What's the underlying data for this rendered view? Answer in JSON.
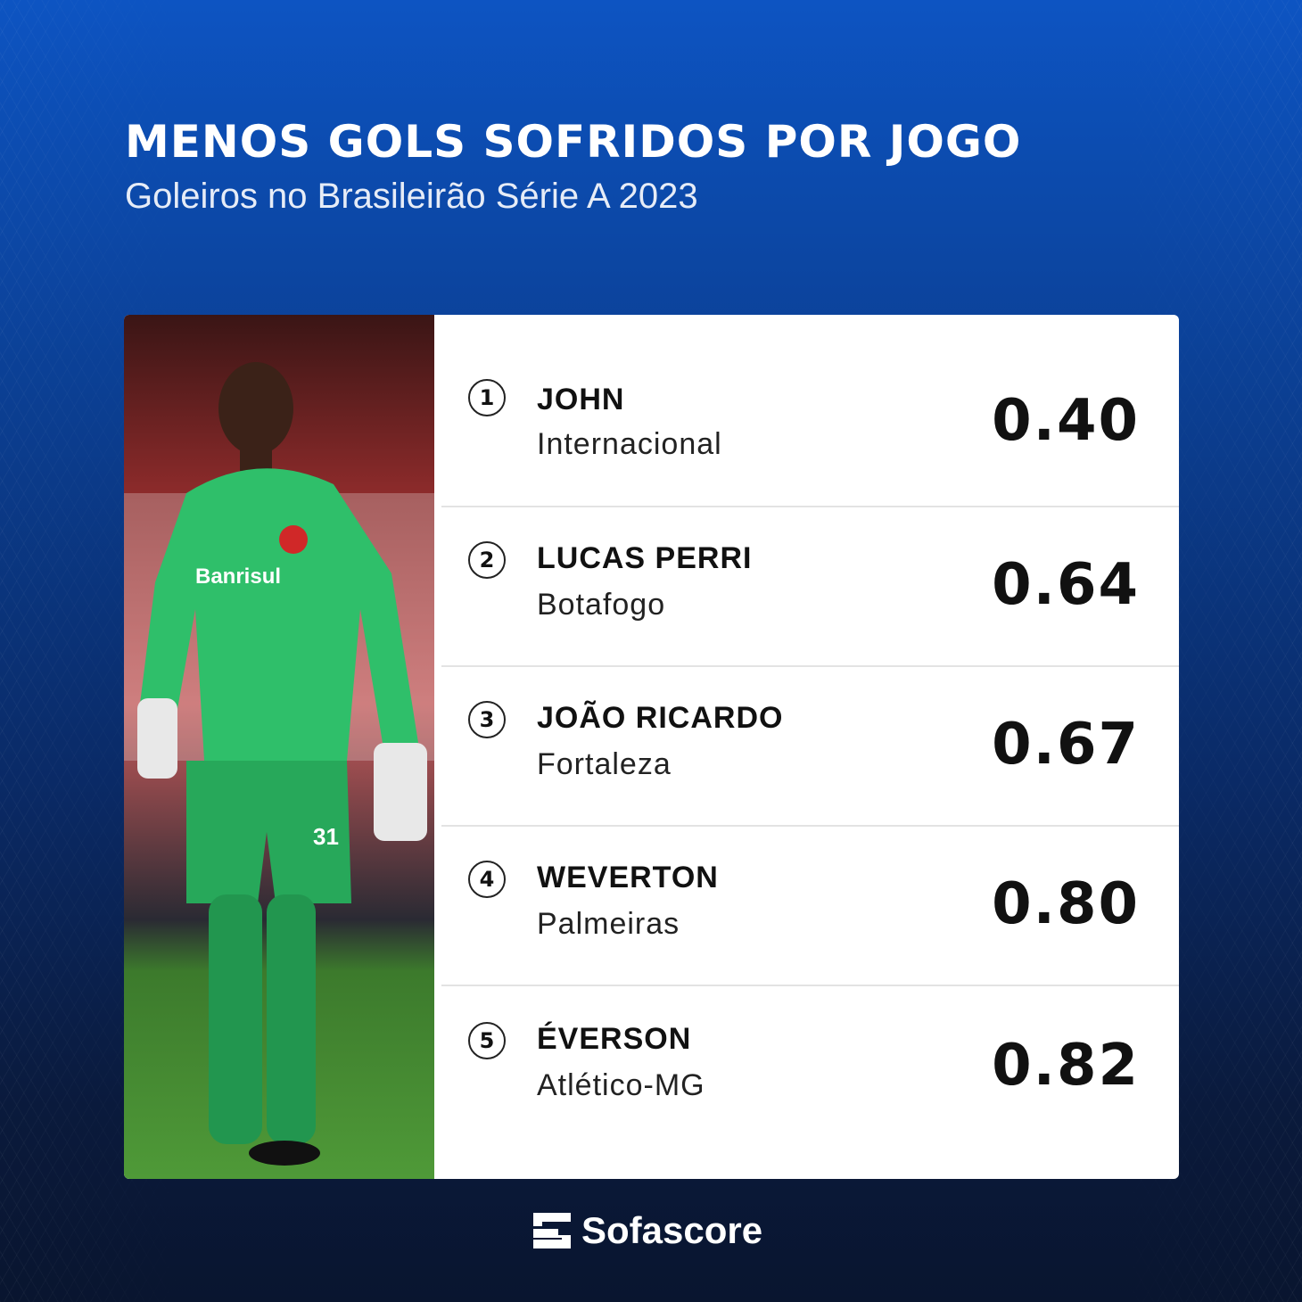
{
  "header": {
    "title": "MENOS GOLS SOFRIDOS POR JOGO",
    "subtitle": "Goleiros no Brasileirão Série A 2023"
  },
  "ranking": [
    {
      "rank": "1",
      "name": "JOHN",
      "team": "Internacional",
      "value": "0.40"
    },
    {
      "rank": "2",
      "name": "LUCAS PERRI",
      "team": "Botafogo",
      "value": "0.64"
    },
    {
      "rank": "3",
      "name": "JOÃO RICARDO",
      "team": "Fortaleza",
      "value": "0.67"
    },
    {
      "rank": "4",
      "name": "WEVERTON",
      "team": "Palmeiras",
      "value": "0.80"
    },
    {
      "rank": "5",
      "name": "ÉVERSON",
      "team": "Atlético-MG",
      "value": "0.82"
    }
  ],
  "photo": {
    "jersey_text": "Banrisul",
    "shirt_number": "31"
  },
  "brand": {
    "name": "Sofascore"
  },
  "colors": {
    "background_top": "#0d54c2",
    "background_bottom": "#09152f",
    "kit_green": "#2fbf6a"
  }
}
